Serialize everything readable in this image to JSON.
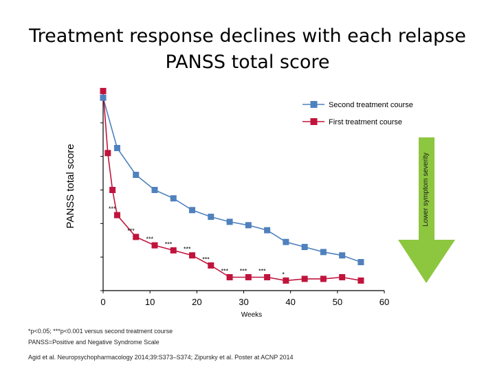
{
  "slide": {
    "title_line1": "Treatment response declines with each relapse",
    "title_line2": "PANSS total score"
  },
  "arrow": {
    "label": "Lower symptom severity",
    "color": "#8dc63f"
  },
  "footnotes": {
    "significance": "*p<0.05; ***p<0.001 versus second treatment course",
    "abbreviation": "PANSS=Positive and Negative Syndrome Scale",
    "references": "Agid et al. Neuropsychopharmacology 2014;39:S373–S374; Zipursky et al. Poster at ACNP 2014"
  },
  "chart_data": {
    "type": "line",
    "title": "PANSS total score",
    "xlabel": "Weeks",
    "ylabel": "PANSS total score",
    "xlim": [
      0,
      60
    ],
    "x_ticks": [
      0,
      10,
      20,
      30,
      40,
      50,
      60
    ],
    "ylim": [
      0,
      60
    ],
    "y_ticks": [
      0,
      10,
      20,
      30,
      40,
      50,
      60
    ],
    "y_tick_labels_visible": false,
    "legend_position": "top-right",
    "series": [
      {
        "name": "Second treatment course",
        "color": "#4f81bd",
        "x": [
          0,
          3,
          7,
          11,
          15,
          19,
          23,
          27,
          31,
          35,
          39,
          43,
          47,
          51,
          55
        ],
        "y": [
          57.5,
          42.5,
          34.5,
          30,
          27.5,
          24,
          22,
          20.5,
          19.5,
          18,
          14.5,
          13,
          11.5,
          10.5,
          8.5
        ],
        "labels": [
          "",
          "",
          "",
          "",
          "",
          "",
          "",
          "",
          "",
          "",
          "",
          "",
          "",
          "",
          ""
        ]
      },
      {
        "name": "First treatment course",
        "color": "#c0143c",
        "x": [
          0,
          1,
          2,
          3,
          7,
          11,
          15,
          19,
          23,
          27,
          31,
          35,
          39,
          43,
          47,
          51,
          55
        ],
        "y": [
          59.5,
          41,
          30,
          22.5,
          16,
          13.5,
          12,
          10.5,
          7.5,
          4,
          4,
          4,
          3,
          3.5,
          3.5,
          4,
          3
        ],
        "labels": [
          "",
          "",
          "",
          "***",
          "***",
          "***",
          "***",
          "***",
          "***",
          "***",
          "***",
          "***",
          "*",
          "",
          "",
          "",
          ""
        ]
      }
    ]
  }
}
